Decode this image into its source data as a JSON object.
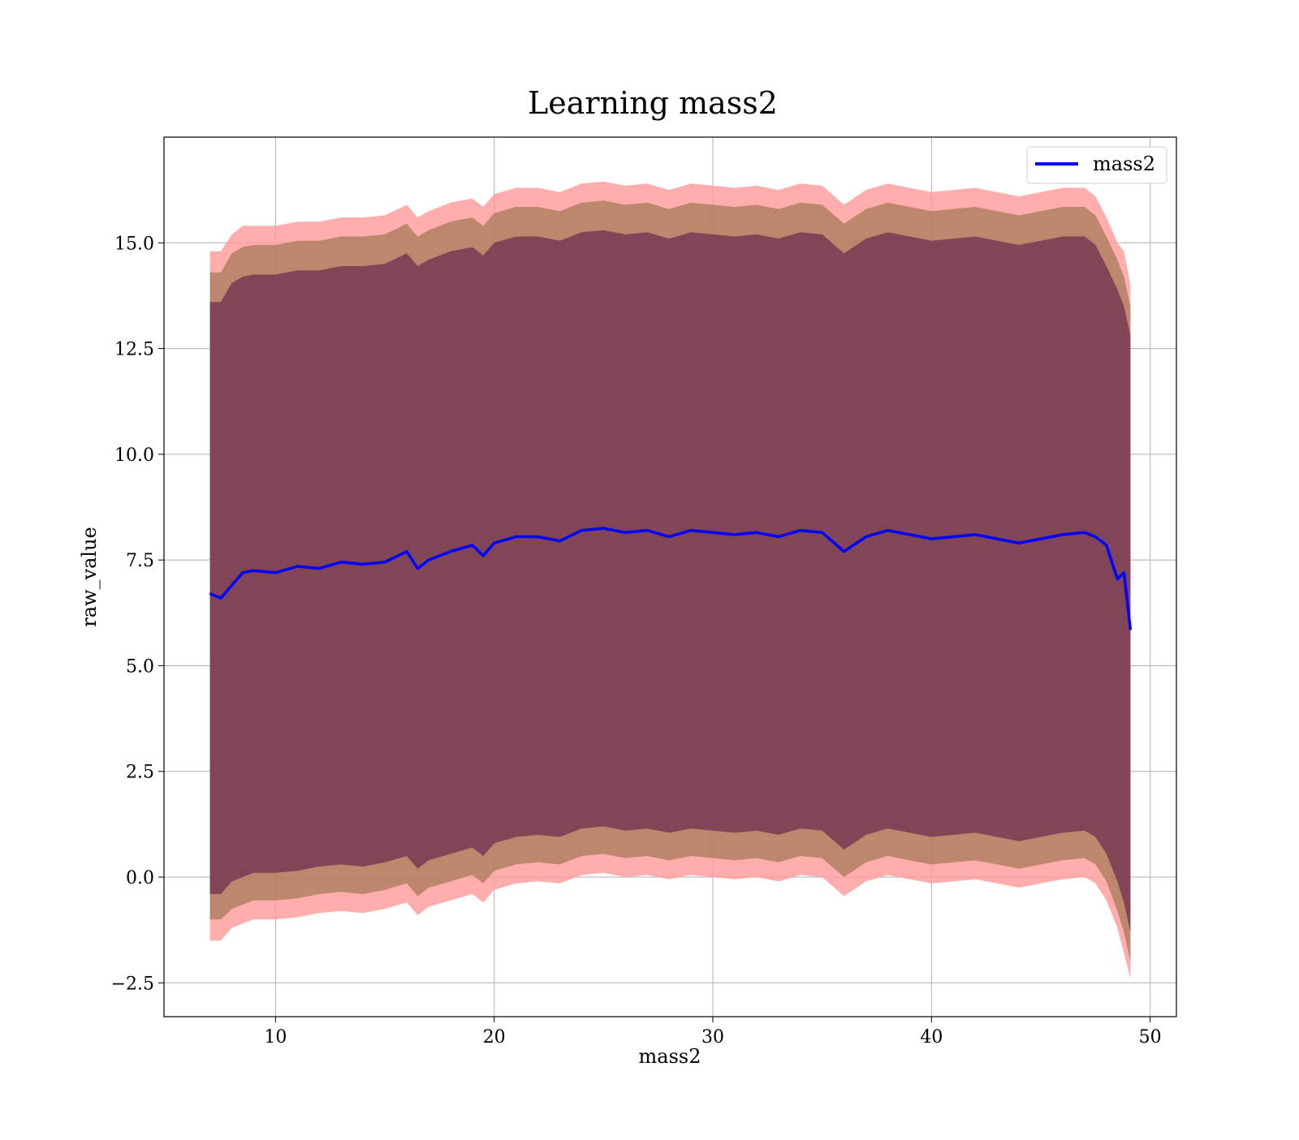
{
  "chart_data": {
    "type": "line",
    "title": "Learning mass2",
    "xlabel": "mass2",
    "ylabel": "raw_value",
    "xlim": [
      4.9,
      51.2
    ],
    "ylim": [
      -3.3,
      17.5
    ],
    "xticks": [
      10,
      20,
      30,
      40,
      50
    ],
    "xtick_labels": [
      "10",
      "20",
      "30",
      "40",
      "50"
    ],
    "yticks": [
      -2.5,
      0.0,
      2.5,
      5.0,
      7.5,
      10.0,
      12.5,
      15.0
    ],
    "ytick_labels": [
      "−2.5",
      "0.0",
      "2.5",
      "5.0",
      "7.5",
      "10.0",
      "12.5",
      "15.0"
    ],
    "grid": true,
    "legend": {
      "position": "top-right",
      "entries": [
        "mass2"
      ]
    },
    "colors": {
      "line": "#0000ff",
      "band_outer": "#ff9999",
      "band_middle": "#b08060",
      "band_inner": "#7a3e56",
      "grid": "#b0b0b0"
    },
    "series": [
      {
        "name": "mass2",
        "x": [
          7.0,
          7.5,
          8.0,
          8.5,
          9.0,
          10.0,
          11.0,
          12.0,
          13.0,
          14.0,
          15.0,
          16.0,
          16.5,
          17.0,
          18.0,
          19.0,
          19.5,
          20.0,
          21.0,
          22.0,
          23.0,
          24.0,
          25.0,
          26.0,
          27.0,
          28.0,
          29.0,
          30.0,
          31.0,
          32.0,
          33.0,
          34.0,
          35.0,
          36.0,
          37.0,
          38.0,
          39.0,
          40.0,
          41.0,
          42.0,
          43.0,
          44.0,
          45.0,
          46.0,
          47.0,
          47.5,
          48.0,
          48.5,
          48.8,
          49.1
        ],
        "y": [
          6.7,
          6.6,
          6.9,
          7.2,
          7.25,
          7.2,
          7.35,
          7.3,
          7.45,
          7.4,
          7.45,
          7.7,
          7.3,
          7.5,
          7.7,
          7.85,
          7.6,
          7.9,
          8.05,
          8.05,
          7.95,
          8.2,
          8.25,
          8.15,
          8.2,
          8.05,
          8.2,
          8.15,
          8.1,
          8.15,
          8.05,
          8.2,
          8.15,
          7.7,
          8.05,
          8.2,
          8.1,
          8.0,
          8.05,
          8.1,
          8.0,
          7.9,
          8.0,
          8.1,
          8.15,
          8.05,
          7.85,
          7.05,
          7.2,
          5.85
        ],
        "bands": [
          {
            "name": "outer",
            "lower": [
              -1.5,
              -1.5,
              -1.2,
              -1.1,
              -1.0,
              -1.0,
              -0.95,
              -0.85,
              -0.8,
              -0.85,
              -0.75,
              -0.6,
              -0.9,
              -0.7,
              -0.55,
              -0.4,
              -0.6,
              -0.3,
              -0.15,
              -0.1,
              -0.15,
              0.05,
              0.1,
              0.0,
              0.05,
              -0.05,
              0.05,
              0.0,
              -0.05,
              0.0,
              -0.1,
              0.05,
              0.0,
              -0.45,
              -0.1,
              0.05,
              -0.05,
              -0.15,
              -0.1,
              -0.05,
              -0.15,
              -0.25,
              -0.15,
              -0.05,
              0.0,
              -0.15,
              -0.55,
              -1.2,
              -1.8,
              -2.4
            ],
            "upper": [
              14.8,
              14.8,
              15.2,
              15.4,
              15.4,
              15.4,
              15.5,
              15.5,
              15.6,
              15.6,
              15.65,
              15.9,
              15.6,
              15.75,
              15.95,
              16.05,
              15.85,
              16.15,
              16.3,
              16.3,
              16.2,
              16.4,
              16.45,
              16.35,
              16.4,
              16.25,
              16.4,
              16.35,
              16.3,
              16.35,
              16.25,
              16.4,
              16.35,
              15.9,
              16.25,
              16.4,
              16.3,
              16.2,
              16.25,
              16.3,
              16.2,
              16.1,
              16.2,
              16.3,
              16.3,
              16.1,
              15.6,
              15.0,
              14.8,
              14.0
            ]
          },
          {
            "name": "middle",
            "lower": [
              -1.0,
              -1.0,
              -0.75,
              -0.65,
              -0.55,
              -0.55,
              -0.5,
              -0.4,
              -0.35,
              -0.4,
              -0.3,
              -0.15,
              -0.45,
              -0.25,
              -0.1,
              0.05,
              -0.15,
              0.15,
              0.3,
              0.35,
              0.3,
              0.5,
              0.55,
              0.45,
              0.5,
              0.4,
              0.5,
              0.45,
              0.4,
              0.45,
              0.35,
              0.5,
              0.45,
              0.0,
              0.35,
              0.5,
              0.4,
              0.3,
              0.35,
              0.4,
              0.3,
              0.2,
              0.3,
              0.4,
              0.45,
              0.3,
              -0.1,
              -0.8,
              -1.3,
              -2.0
            ],
            "upper": [
              14.3,
              14.3,
              14.75,
              14.9,
              14.95,
              14.95,
              15.05,
              15.05,
              15.15,
              15.15,
              15.2,
              15.45,
              15.15,
              15.3,
              15.5,
              15.6,
              15.4,
              15.7,
              15.85,
              15.85,
              15.75,
              15.95,
              16.0,
              15.9,
              15.95,
              15.8,
              15.95,
              15.9,
              15.85,
              15.9,
              15.8,
              15.95,
              15.9,
              15.45,
              15.8,
              15.95,
              15.85,
              15.75,
              15.8,
              15.85,
              15.75,
              15.65,
              15.75,
              15.85,
              15.85,
              15.65,
              15.15,
              14.6,
              14.2,
              13.5
            ]
          },
          {
            "name": "inner",
            "lower": [
              -0.4,
              -0.4,
              -0.1,
              0.0,
              0.1,
              0.1,
              0.15,
              0.25,
              0.3,
              0.25,
              0.35,
              0.5,
              0.2,
              0.4,
              0.55,
              0.7,
              0.5,
              0.8,
              0.95,
              1.0,
              0.95,
              1.15,
              1.2,
              1.1,
              1.15,
              1.05,
              1.15,
              1.1,
              1.05,
              1.1,
              1.0,
              1.15,
              1.1,
              0.65,
              1.0,
              1.15,
              1.05,
              0.95,
              1.0,
              1.05,
              0.95,
              0.85,
              0.95,
              1.05,
              1.1,
              0.95,
              0.55,
              -0.1,
              -0.6,
              -1.3
            ],
            "upper": [
              13.6,
              13.6,
              14.05,
              14.2,
              14.25,
              14.25,
              14.35,
              14.35,
              14.45,
              14.45,
              14.5,
              14.75,
              14.45,
              14.6,
              14.8,
              14.9,
              14.7,
              15.0,
              15.15,
              15.15,
              15.05,
              15.25,
              15.3,
              15.2,
              15.25,
              15.1,
              15.25,
              15.2,
              15.15,
              15.2,
              15.1,
              15.25,
              15.2,
              14.75,
              15.1,
              15.25,
              15.15,
              15.05,
              15.1,
              15.15,
              15.05,
              14.95,
              15.05,
              15.15,
              15.15,
              14.95,
              14.45,
              13.9,
              13.5,
              12.8
            ]
          }
        ]
      }
    ]
  }
}
